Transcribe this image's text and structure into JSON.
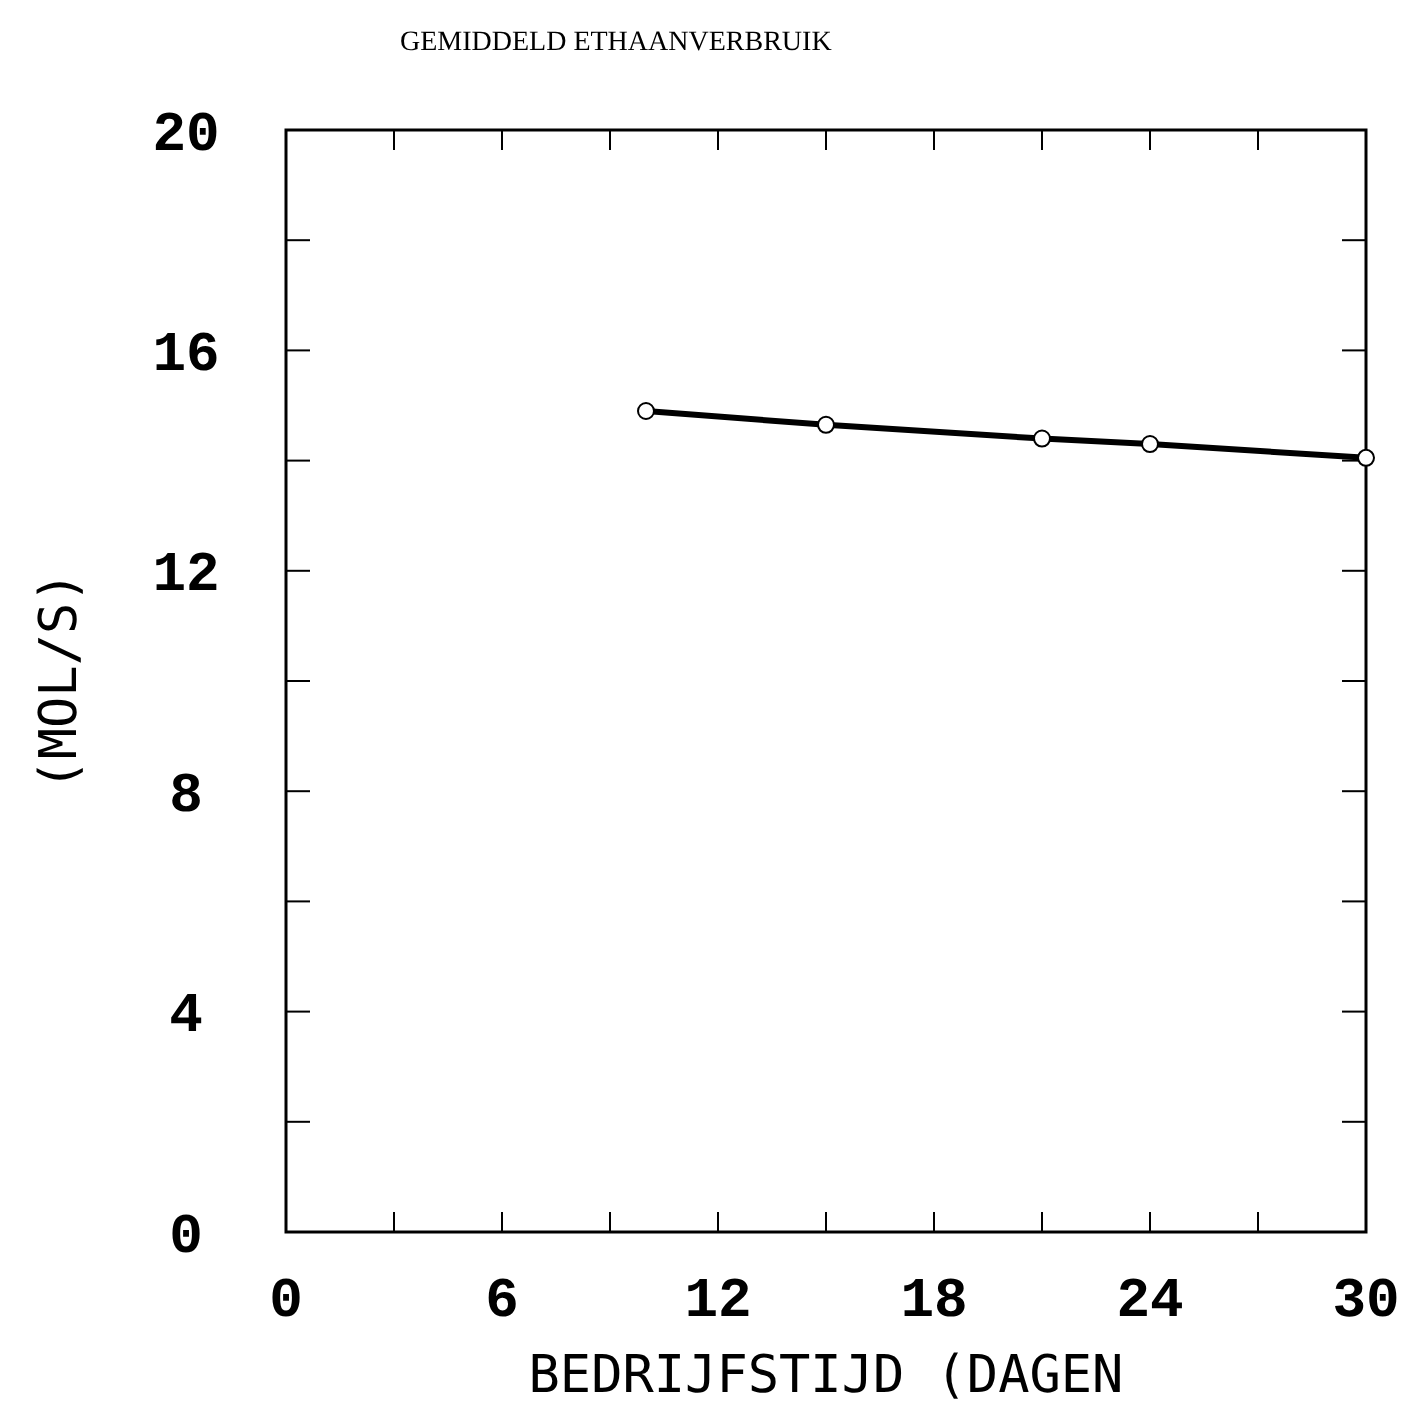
{
  "chart_data": {
    "type": "line",
    "title": "GEMIDDELD ETHAANVERBRUIK",
    "xlabel": "BEDRIJFSTIJD (DAGEN",
    "ylabel": "(MOL/S)",
    "x": [
      10,
      15,
      21,
      24,
      30
    ],
    "series": [
      {
        "color": "#000000",
        "values": [
          14.9,
          14.65,
          14.4,
          14.3,
          14.05
        ]
      }
    ],
    "marker": "circle",
    "line_style": "solid",
    "xlim": [
      0,
      30
    ],
    "ylim": [
      0,
      20
    ],
    "xticks": [
      0,
      {
        "value": 3,
        "label": null
      },
      6,
      {
        "value": 9,
        "label": null
      },
      12,
      {
        "value": 15,
        "label": null
      },
      18,
      {
        "value": 21,
        "label": null
      },
      24,
      {
        "value": 27,
        "label": null
      },
      30
    ],
    "yticks": [
      0,
      {
        "value": 2,
        "label": null
      },
      4,
      {
        "value": 6,
        "label": null
      },
      8,
      {
        "value": 10,
        "label": null
      },
      12,
      {
        "value": 14,
        "label": null
      },
      16,
      {
        "value": 18,
        "label": null
      },
      20
    ],
    "grid": false
  }
}
